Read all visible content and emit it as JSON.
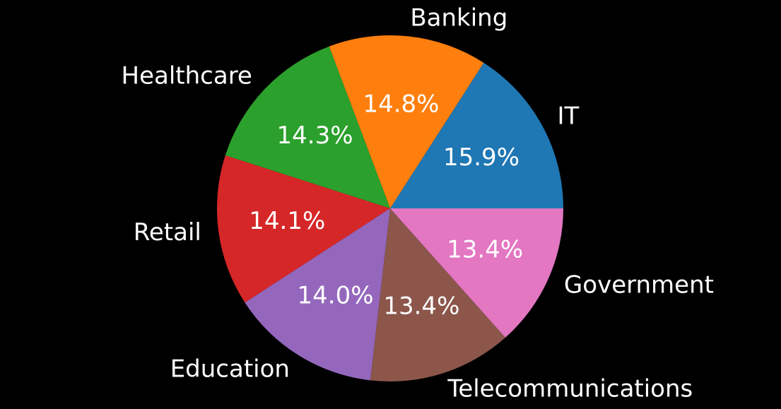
{
  "chart_data": {
    "type": "pie",
    "title": "",
    "categories": [
      "IT",
      "Banking",
      "Healthcare",
      "Retail",
      "Education",
      "Telecommunications",
      "Government"
    ],
    "values": [
      15.9,
      14.8,
      14.3,
      14.1,
      14.0,
      13.4,
      13.4
    ],
    "percent_labels": [
      "15.9%",
      "14.8%",
      "14.3%",
      "14.1%",
      "14.0%",
      "13.4%",
      "13.4%"
    ],
    "colors": [
      "#1f77b4",
      "#ff7f0e",
      "#2ca02c",
      "#d62728",
      "#9467bd",
      "#8c564b",
      "#e377c2"
    ],
    "start_angle_deg": 0,
    "direction": "counterclockwise",
    "background": "#000000",
    "text_color": "#ffffff",
    "legend": "none"
  }
}
